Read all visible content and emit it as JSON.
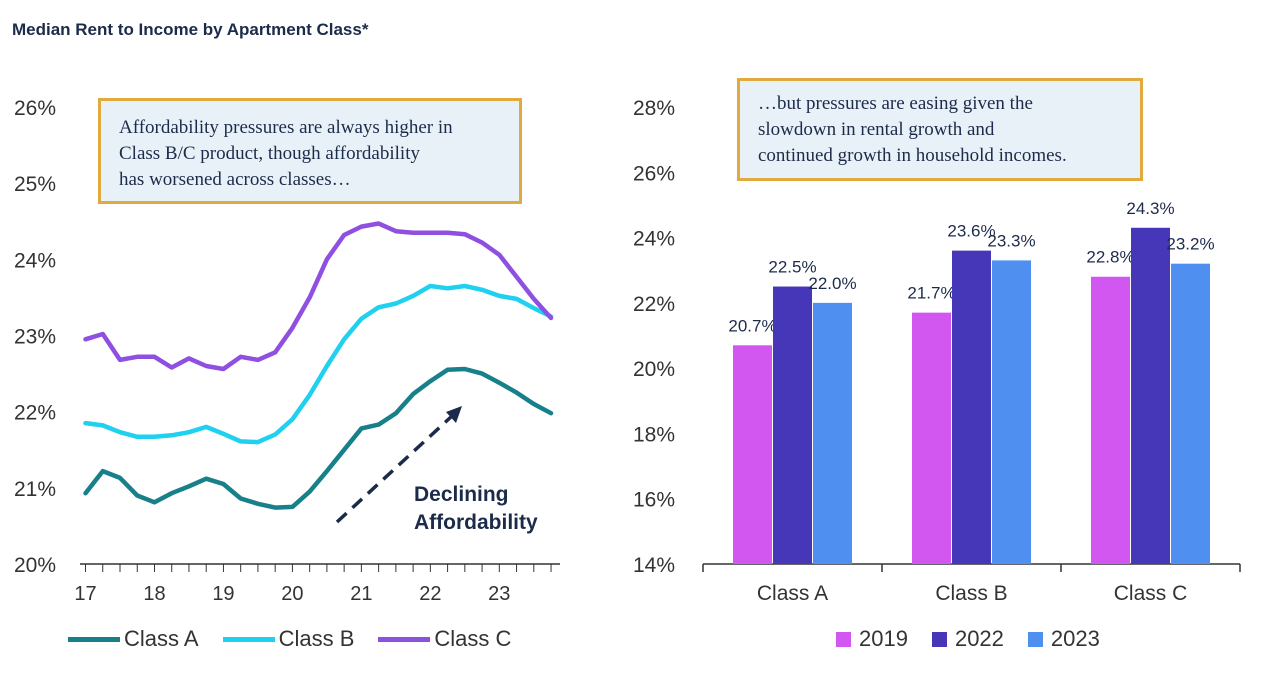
{
  "title": "Median Rent to Income by Apartment Class*",
  "left_callout": {
    "lines": [
      "Affordability pressures are always higher in",
      "Class B/C product, though affordability",
      "has worsened across classes…"
    ]
  },
  "right_callout": {
    "lines": [
      "…but pressures are easing given the",
      "slowdown in rental growth and",
      "continued growth in household incomes."
    ]
  },
  "annotation": {
    "line1": "Declining",
    "line2": "Affordability"
  },
  "colors": {
    "class_a": "#17808a",
    "class_b": "#1fd0ef",
    "class_c": "#8f4fe0",
    "bar_2019": "#d257f0",
    "bar_2022": "#4537b8",
    "bar_2023": "#4f8ff0",
    "text": "#1c2b4a",
    "callout_border": "#e0aa3e",
    "callout_bg": "#e9f1f8"
  },
  "chart_data": [
    {
      "type": "line",
      "title": "",
      "xlabel": "",
      "ylabel": "",
      "x_ticks": [
        "17",
        "18",
        "19",
        "20",
        "21",
        "22",
        "23"
      ],
      "x": [
        2017.0,
        2017.25,
        2017.5,
        2017.75,
        2018.0,
        2018.25,
        2018.5,
        2018.75,
        2019.0,
        2019.25,
        2019.5,
        2019.75,
        2020.0,
        2020.25,
        2020.5,
        2020.75,
        2021.0,
        2021.25,
        2021.5,
        2021.75,
        2022.0,
        2022.25,
        2022.5,
        2022.75,
        2023.0,
        2023.25,
        2023.5,
        2023.75
      ],
      "ylim": [
        20,
        26
      ],
      "y_ticks": [
        "20%",
        "21%",
        "22%",
        "23%",
        "24%",
        "25%",
        "26%"
      ],
      "series": [
        {
          "name": "Class A",
          "values": [
            20.93,
            21.22,
            21.13,
            20.9,
            20.81,
            20.93,
            21.02,
            21.12,
            21.05,
            20.86,
            20.79,
            20.74,
            20.75,
            20.95,
            21.22,
            21.5,
            21.78,
            21.83,
            21.98,
            22.23,
            22.4,
            22.55,
            22.56,
            22.5,
            22.38,
            22.25,
            22.1,
            21.98
          ]
        },
        {
          "name": "Class B",
          "values": [
            21.85,
            21.82,
            21.73,
            21.67,
            21.67,
            21.69,
            21.73,
            21.8,
            21.71,
            21.61,
            21.6,
            21.7,
            21.9,
            22.22,
            22.6,
            22.95,
            23.22,
            23.37,
            23.42,
            23.52,
            23.65,
            23.62,
            23.65,
            23.6,
            23.52,
            23.48,
            23.36,
            23.25
          ]
        },
        {
          "name": "Class C",
          "values": [
            22.95,
            23.02,
            22.68,
            22.72,
            22.72,
            22.58,
            22.7,
            22.6,
            22.56,
            22.72,
            22.68,
            22.78,
            23.1,
            23.5,
            24.0,
            24.32,
            24.43,
            24.47,
            24.37,
            24.35,
            24.35,
            24.35,
            24.33,
            24.22,
            24.06,
            23.77,
            23.48,
            23.23
          ]
        }
      ],
      "legend": "bottom"
    },
    {
      "type": "bar",
      "title": "",
      "categories": [
        "Class A",
        "Class B",
        "Class C"
      ],
      "ylim": [
        14,
        28
      ],
      "y_ticks": [
        "14%",
        "16%",
        "18%",
        "20%",
        "22%",
        "24%",
        "26%",
        "28%"
      ],
      "series": [
        {
          "name": "2019",
          "values": [
            20.7,
            21.7,
            22.8
          ],
          "labels": [
            "20.7%",
            "21.7%",
            "22.8%"
          ]
        },
        {
          "name": "2022",
          "values": [
            22.5,
            23.6,
            24.3
          ],
          "labels": [
            "22.5%",
            "23.6%",
            "24.3%"
          ]
        },
        {
          "name": "2023",
          "values": [
            22.0,
            23.3,
            23.2
          ],
          "labels": [
            "22.0%",
            "23.3%",
            "23.2%"
          ]
        }
      ],
      "legend": "bottom"
    }
  ]
}
